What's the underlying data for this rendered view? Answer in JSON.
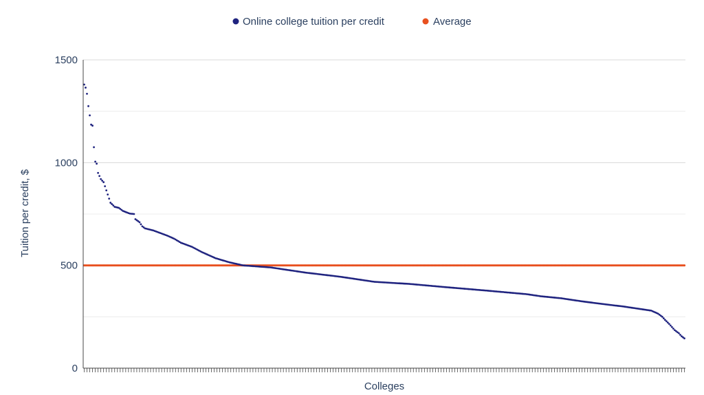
{
  "chart_data": {
    "type": "scatter",
    "xlabel": "Colleges",
    "ylabel": "Tuition per credit, $",
    "ylim": [
      0,
      1500
    ],
    "yticks": [
      0,
      500,
      1000,
      1500
    ],
    "grid": true,
    "legend_position": "top-center",
    "series": [
      {
        "name": "Online college tuition per credit",
        "color": "#1f237f",
        "anchors": [
          [
            0,
            1380
          ],
          [
            1,
            1365
          ],
          [
            2,
            1335
          ],
          [
            3,
            1275
          ],
          [
            4,
            1230
          ],
          [
            5,
            1185
          ],
          [
            6,
            1180
          ],
          [
            7,
            1075
          ],
          [
            8,
            1005
          ],
          [
            9,
            995
          ],
          [
            10,
            950
          ],
          [
            12,
            920
          ],
          [
            14,
            905
          ],
          [
            17,
            845
          ],
          [
            19,
            805
          ],
          [
            22,
            785
          ],
          [
            25,
            780
          ],
          [
            28,
            765
          ],
          [
            33,
            752
          ],
          [
            36,
            750
          ],
          [
            37,
            725
          ],
          [
            40,
            710
          ],
          [
            42,
            690
          ],
          [
            44,
            680
          ],
          [
            50,
            670
          ],
          [
            60,
            645
          ],
          [
            65,
            630
          ],
          [
            70,
            610
          ],
          [
            78,
            590
          ],
          [
            85,
            565
          ],
          [
            95,
            535
          ],
          [
            105,
            515
          ],
          [
            115,
            500
          ],
          [
            135,
            490
          ],
          [
            160,
            465
          ],
          [
            185,
            445
          ],
          [
            210,
            420
          ],
          [
            235,
            410
          ],
          [
            260,
            395
          ],
          [
            290,
            378
          ],
          [
            320,
            360
          ],
          [
            330,
            350
          ],
          [
            345,
            340
          ],
          [
            360,
            325
          ],
          [
            380,
            308
          ],
          [
            390,
            300
          ],
          [
            400,
            290
          ],
          [
            410,
            280
          ],
          [
            415,
            265
          ],
          [
            418,
            250
          ],
          [
            420,
            235
          ],
          [
            423,
            215
          ],
          [
            425,
            200
          ],
          [
            427,
            185
          ],
          [
            430,
            170
          ],
          [
            432,
            155
          ],
          [
            434,
            145
          ]
        ],
        "count": 435
      },
      {
        "name": "Average",
        "color": "#e8501f",
        "value": 500,
        "count": 435
      }
    ]
  }
}
